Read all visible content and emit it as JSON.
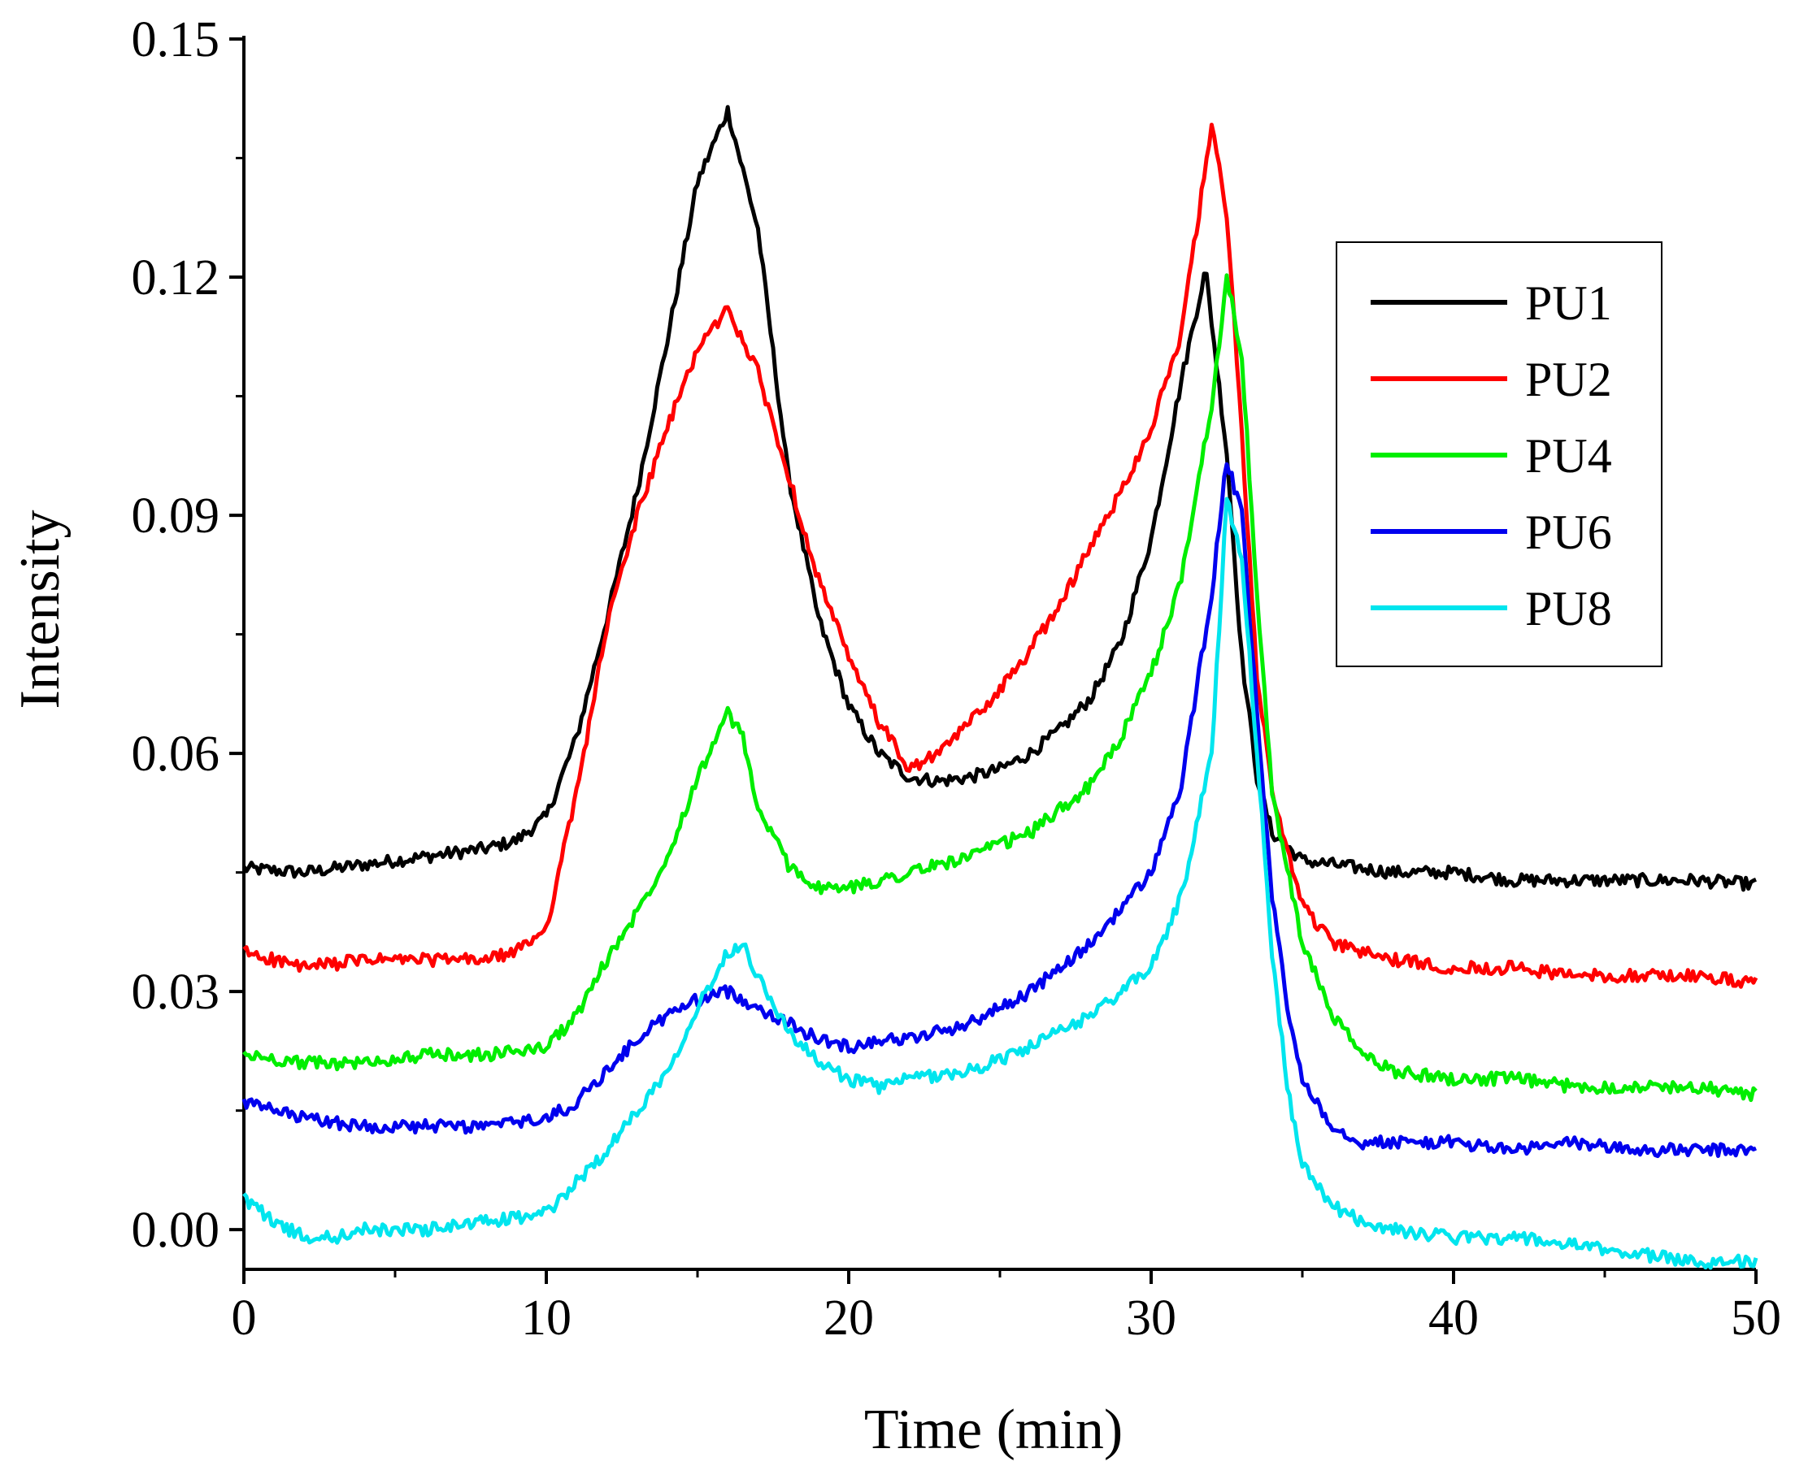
{
  "chart_data": {
    "type": "line",
    "title": "",
    "xlabel": "Time (min)",
    "ylabel": "Intensity",
    "xlim": [
      0,
      50
    ],
    "ylim": [
      -0.005,
      0.15
    ],
    "xticks": [
      0,
      10,
      20,
      30,
      40,
      50
    ],
    "xtick_labels": [
      "0",
      "10",
      "20",
      "30",
      "40",
      "50"
    ],
    "yticks": [
      0.0,
      0.03,
      0.06,
      0.09,
      0.12,
      0.15
    ],
    "ytick_labels": [
      "0.00",
      "0.03",
      "0.06",
      "0.09",
      "0.12",
      "0.15"
    ],
    "grid": false,
    "legend_position": "top-right",
    "series": [
      {
        "name": "PU1",
        "color": "#000000",
        "x": [
          0,
          2,
          4,
          6,
          8,
          9,
          10,
          11,
          12,
          13,
          14,
          15,
          16,
          17,
          18,
          19,
          20,
          21,
          22,
          23,
          24,
          25,
          26,
          27,
          28,
          29,
          30,
          31,
          31.8,
          32.5,
          33,
          33.5,
          34,
          35,
          36,
          38,
          40,
          42,
          44,
          46,
          48,
          50
        ],
        "y": [
          0.0455,
          0.045,
          0.046,
          0.047,
          0.048,
          0.049,
          0.052,
          0.062,
          0.077,
          0.093,
          0.112,
          0.132,
          0.141,
          0.126,
          0.095,
          0.077,
          0.066,
          0.06,
          0.057,
          0.0565,
          0.057,
          0.058,
          0.06,
          0.063,
          0.067,
          0.074,
          0.087,
          0.107,
          0.121,
          0.098,
          0.072,
          0.057,
          0.05,
          0.0465,
          0.046,
          0.045,
          0.045,
          0.044,
          0.044,
          0.044,
          0.044,
          0.0435
        ]
      },
      {
        "name": "PU2",
        "color": "#ff0000",
        "x": [
          0,
          2,
          4,
          6,
          8,
          9,
          10,
          11,
          12,
          13,
          14,
          15,
          16,
          17,
          18,
          19,
          20,
          21,
          22,
          23,
          24,
          25,
          26,
          27,
          28,
          29,
          30,
          31,
          32,
          32.5,
          33,
          33.5,
          34,
          35,
          36,
          38,
          40,
          42,
          44,
          46,
          48,
          50
        ],
        "y": [
          0.035,
          0.033,
          0.034,
          0.034,
          0.034,
          0.035,
          0.038,
          0.055,
          0.076,
          0.09,
          0.101,
          0.111,
          0.116,
          0.108,
          0.095,
          0.082,
          0.072,
          0.064,
          0.058,
          0.06,
          0.064,
          0.068,
          0.073,
          0.079,
          0.086,
          0.093,
          0.101,
          0.113,
          0.139,
          0.128,
          0.1,
          0.07,
          0.055,
          0.041,
          0.036,
          0.034,
          0.033,
          0.033,
          0.032,
          0.032,
          0.032,
          0.031
        ]
      },
      {
        "name": "PU4",
        "color": "#00ee00",
        "x": [
          0,
          2,
          4,
          6,
          8,
          10,
          11,
          12,
          13,
          14,
          15,
          16,
          16.5,
          17,
          18,
          19,
          20,
          21,
          22,
          24,
          26,
          28,
          29,
          30,
          31,
          32,
          32.5,
          33,
          33.5,
          34,
          35,
          36,
          37,
          38,
          40,
          42,
          44,
          46,
          48,
          50
        ],
        "y": [
          0.022,
          0.021,
          0.021,
          0.022,
          0.022,
          0.023,
          0.027,
          0.034,
          0.04,
          0.047,
          0.057,
          0.065,
          0.062,
          0.053,
          0.046,
          0.043,
          0.043,
          0.044,
          0.045,
          0.047,
          0.05,
          0.056,
          0.062,
          0.07,
          0.082,
          0.104,
          0.12,
          0.11,
          0.08,
          0.055,
          0.036,
          0.027,
          0.022,
          0.02,
          0.019,
          0.019,
          0.018,
          0.018,
          0.018,
          0.017
        ]
      },
      {
        "name": "PU6",
        "color": "#0000ee",
        "x": [
          0,
          2,
          4,
          6,
          8,
          10,
          11,
          12,
          13,
          14,
          15,
          16,
          17,
          18,
          19,
          20,
          21,
          22,
          24,
          26,
          28,
          30,
          31,
          32,
          32.5,
          33,
          33.5,
          34,
          34.5,
          35,
          36,
          37,
          38,
          40,
          42,
          44,
          46,
          48,
          50
        ],
        "y": [
          0.016,
          0.014,
          0.013,
          0.013,
          0.013,
          0.014,
          0.016,
          0.02,
          0.024,
          0.027,
          0.029,
          0.03,
          0.028,
          0.026,
          0.024,
          0.023,
          0.024,
          0.024,
          0.026,
          0.03,
          0.036,
          0.045,
          0.056,
          0.08,
          0.097,
          0.09,
          0.065,
          0.042,
          0.028,
          0.019,
          0.013,
          0.011,
          0.011,
          0.011,
          0.01,
          0.011,
          0.01,
          0.01,
          0.01
        ]
      },
      {
        "name": "PU8",
        "color": "#00e5ee",
        "x": [
          0,
          1,
          2,
          3,
          4,
          6,
          8,
          10,
          11,
          12,
          13,
          14,
          15,
          16,
          16.5,
          17,
          18,
          19,
          20,
          21,
          22,
          24,
          26,
          28,
          30,
          31,
          32,
          32.5,
          33,
          33.5,
          34,
          34.5,
          35,
          36,
          37,
          38,
          40,
          42,
          44,
          46,
          48,
          50
        ],
        "y": [
          0.004,
          0.001,
          -0.001,
          -0.001,
          0.0,
          0.0,
          0.001,
          0.002,
          0.006,
          0.01,
          0.015,
          0.02,
          0.028,
          0.035,
          0.036,
          0.032,
          0.025,
          0.021,
          0.019,
          0.018,
          0.019,
          0.02,
          0.023,
          0.027,
          0.033,
          0.042,
          0.06,
          0.092,
          0.085,
          0.06,
          0.035,
          0.018,
          0.008,
          0.003,
          0.001,
          0.0,
          -0.001,
          -0.001,
          -0.002,
          -0.003,
          -0.004,
          -0.004
        ]
      }
    ]
  }
}
